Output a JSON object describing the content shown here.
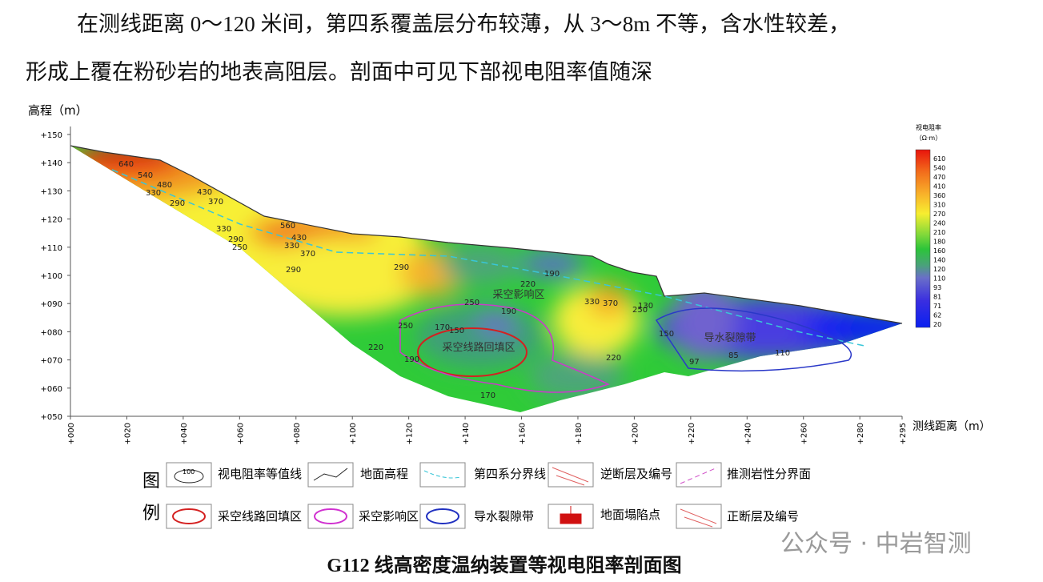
{
  "paragraph": [
    "在测线距离 0～120 米间，第四系覆盖层分布较薄，从 3～8m 不等，含水性较差，",
    "形成上覆在粉砂岩的地表高阻层。剖面中可见下部视电阻率值随深"
  ],
  "figure": {
    "y_title": "高程（m）",
    "x_title": "测线距离（m）",
    "yticks": [
      {
        "value": 150,
        "label": "+150"
      },
      {
        "value": 140,
        "label": "+140"
      },
      {
        "value": 130,
        "label": "+130"
      },
      {
        "value": 120,
        "label": "+120"
      },
      {
        "value": 110,
        "label": "+110"
      },
      {
        "value": 100,
        "label": "+100"
      },
      {
        "value": 90,
        "label": "+090"
      },
      {
        "value": 80,
        "label": "+080"
      },
      {
        "value": 70,
        "label": "+070"
      },
      {
        "value": 60,
        "label": "+060"
      },
      {
        "value": 50,
        "label": "+050"
      }
    ],
    "xticks": [
      {
        "value": 0,
        "label": "+000"
      },
      {
        "value": 20,
        "label": "+020"
      },
      {
        "value": 40,
        "label": "+040"
      },
      {
        "value": 60,
        "label": "+060"
      },
      {
        "value": 80,
        "label": "+080"
      },
      {
        "value": 100,
        "label": "+100"
      },
      {
        "value": 120,
        "label": "+120"
      },
      {
        "value": 140,
        "label": "+140"
      },
      {
        "value": 160,
        "label": "+160"
      },
      {
        "value": 180,
        "label": "+180"
      },
      {
        "value": 200,
        "label": "+200"
      },
      {
        "value": 220,
        "label": "+220"
      },
      {
        "value": 240,
        "label": "+240"
      },
      {
        "value": 260,
        "label": "+260"
      },
      {
        "value": 280,
        "label": "+280"
      },
      {
        "value": 295,
        "label": "+295"
      }
    ],
    "colorbar_title": "视电阻率",
    "colorbar_unit": "（Ω·m）",
    "colorbar_labels": [
      610,
      540,
      470,
      410,
      360,
      310,
      270,
      240,
      210,
      180,
      160,
      140,
      120,
      110,
      93,
      81,
      71,
      62,
      20
    ],
    "regions": [
      "采空影响区",
      "采空线路回填区",
      "导水裂隙带"
    ],
    "contour_labels": [
      640,
      540,
      480,
      430,
      330,
      370,
      290,
      330,
      290,
      250,
      560,
      430,
      370,
      330,
      290,
      220,
      250,
      290,
      170,
      150,
      190,
      170,
      220,
      190,
      250,
      330,
      370,
      250,
      220,
      130,
      150,
      97,
      85,
      110,
      190
    ],
    "legend_title": [
      "图",
      "例"
    ],
    "legend_icon": "100",
    "legend": [
      "视电阻率等值线",
      "地面高程",
      "第四系分界线",
      "逆断层及编号",
      "推测岩性分界面",
      "采空线路回填区",
      "采空影响区",
      "导水裂隙带",
      "地面塌陷点",
      "正断层及编号"
    ]
  },
  "caption": "G112 线高密度温纳装置等视电阻率剖面图",
  "watermark": "公众号 · 中岩智测"
}
